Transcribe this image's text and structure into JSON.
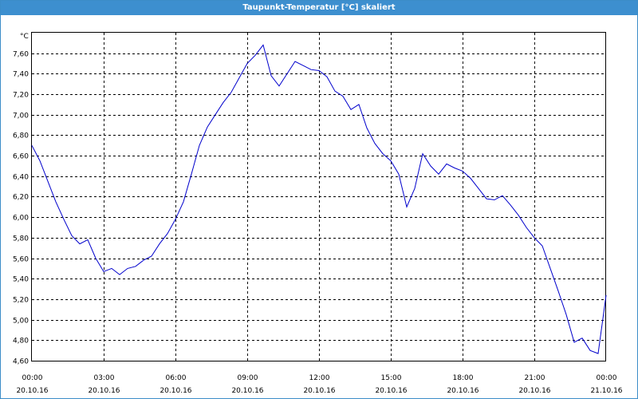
{
  "window": {
    "title": "Taupunkt-Temperatur [°C] skaliert"
  },
  "chart_data": {
    "type": "line",
    "title": "Taupunkt-Temperatur [°C] skaliert",
    "unit": "°C",
    "xlabel": "",
    "ylabel": "°C",
    "xlim": [
      "20.10.16 00:00",
      "21.10.16 00:00"
    ],
    "ylim": [
      4.6,
      7.8
    ],
    "grid": true,
    "line_color": "#0000cc",
    "y_ticks": [
      "7,60",
      "7,40",
      "7,20",
      "7,00",
      "6,80",
      "6,60",
      "6,40",
      "6,20",
      "6,00",
      "5,80",
      "5,60",
      "5,40",
      "5,20",
      "5,00",
      "4,80",
      "4,60"
    ],
    "x_ticks": [
      {
        "time": "00:00",
        "date": "20.10.16"
      },
      {
        "time": "03:00",
        "date": "20.10.16"
      },
      {
        "time": "06:00",
        "date": "20.10.16"
      },
      {
        "time": "09:00",
        "date": "20.10.16"
      },
      {
        "time": "12:00",
        "date": "20.10.16"
      },
      {
        "time": "15:00",
        "date": "20.10.16"
      },
      {
        "time": "18:00",
        "date": "20.10.16"
      },
      {
        "time": "21:00",
        "date": "20.10.16"
      },
      {
        "time": "00:00",
        "date": "21.10.16"
      }
    ],
    "series": [
      {
        "x": [
          "00:00",
          "00:20",
          "00:40",
          "01:00",
          "01:20",
          "01:40",
          "02:00",
          "02:20",
          "02:40",
          "03:00",
          "03:20",
          "03:40",
          "04:00",
          "04:20",
          "04:40",
          "05:00",
          "05:20",
          "05:40",
          "06:00",
          "06:20",
          "06:40",
          "07:00",
          "07:20",
          "07:40",
          "08:00",
          "08:20",
          "08:40",
          "09:00",
          "09:20",
          "09:40",
          "10:00",
          "10:20",
          "10:40",
          "11:00",
          "11:20",
          "11:40",
          "12:00",
          "12:20",
          "12:40",
          "13:00",
          "13:20",
          "13:40",
          "14:00",
          "14:20",
          "14:40",
          "15:00",
          "15:20",
          "15:40",
          "16:00",
          "16:20",
          "16:40",
          "17:00",
          "17:20",
          "17:40",
          "18:00",
          "18:20",
          "18:40",
          "19:00",
          "19:20",
          "19:40",
          "20:00",
          "20:20",
          "20:40",
          "21:00",
          "21:20",
          "21:40",
          "22:00",
          "22:20",
          "22:40",
          "23:00",
          "23:20",
          "23:40",
          "24:00"
        ],
        "values": [
          6.7,
          6.55,
          6.35,
          6.15,
          5.98,
          5.82,
          5.74,
          5.78,
          5.6,
          5.47,
          5.5,
          5.44,
          5.5,
          5.52,
          5.58,
          5.62,
          5.74,
          5.84,
          5.98,
          6.15,
          6.42,
          6.7,
          6.88,
          7.0,
          7.12,
          7.22,
          7.36,
          7.5,
          7.58,
          7.68,
          7.38,
          7.28,
          7.4,
          7.52,
          7.48,
          7.44,
          7.43,
          7.37,
          7.23,
          7.18,
          7.05,
          7.1,
          6.87,
          6.72,
          6.62,
          6.55,
          6.42,
          6.1,
          6.28,
          6.62,
          6.5,
          6.42,
          6.52,
          6.48,
          6.45,
          6.38,
          6.28,
          6.18,
          6.17,
          6.21,
          6.12,
          6.02,
          5.9,
          5.8,
          5.72,
          5.5,
          5.28,
          5.05,
          4.78,
          4.82,
          4.7,
          4.67,
          5.24
        ]
      }
    ]
  }
}
